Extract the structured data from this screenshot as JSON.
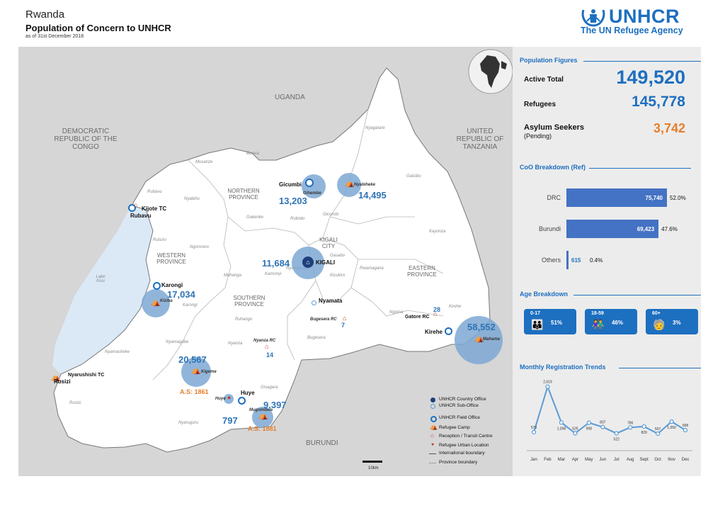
{
  "header": {
    "country": "Rwanda",
    "title": "Population of Concern to UNHCR",
    "date": "as of 31st December 2018"
  },
  "logo": {
    "name": "UNHCR",
    "tagline": "The UN Refugee Agency"
  },
  "population_figures": {
    "title": "Population Figures",
    "active_total_label": "Active Total",
    "active_total": "149,520",
    "refugees_label": "Refugees",
    "refugees": "145,778",
    "asylum_label": "Asylum Seekers",
    "asylum_sub": "(Pending)",
    "asylum": "3,742"
  },
  "coo": {
    "title": "CoO Breakdown (Ref)",
    "max": 75740,
    "rows": [
      {
        "label": "DRC",
        "value": 75740,
        "value_text": "75,740",
        "pct": "52.0%"
      },
      {
        "label": "Burundi",
        "value": 69423,
        "value_text": "69,423",
        "pct": "47.6%"
      },
      {
        "label": "Others",
        "value": 615,
        "value_text": "615",
        "pct": "0.4%"
      }
    ]
  },
  "age": {
    "title": "Age Breakdown",
    "groups": [
      {
        "range": "0-17",
        "pct": "51%"
      },
      {
        "range": "18-59",
        "pct": "46%"
      },
      {
        "range": "60+",
        "pct": "3%"
      }
    ]
  },
  "trends": {
    "title": "Monthly Registration Trends",
    "months": [
      "Jan",
      "Feb",
      "Mar",
      "Apr",
      "May",
      "Jun",
      "Jul",
      "Aug",
      "Sept",
      "Oct",
      "Nov",
      "Dec"
    ],
    "values": [
      573,
      2619,
      1008,
      525,
      998,
      807,
      522,
      786,
      829,
      507,
      1050,
      668
    ],
    "labels": [
      "573",
      "2,619",
      "1,008",
      "525",
      "998",
      "807",
      "522",
      "786",
      "829",
      "507",
      "1,050",
      "668"
    ]
  },
  "map": {
    "countries": {
      "uganda": "UGANDA",
      "drc": "DEMOCRATIC REPUBLIC OF THE CONGO",
      "tanzania": "UNITED REPUBLIC OF TANZANIA",
      "burundi": "BURUNDI"
    },
    "provinces": {
      "northern": "NORTHERN PROVINCE",
      "western": "WESTERN PROVINCE",
      "southern": "SOUTHERN PROVINCE",
      "eastern": "EASTERN PROVINCE",
      "kigali_city": "KIGALI CITY"
    },
    "districts": [
      "Burera",
      "Musanze",
      "Rubavu",
      "Nyabihu",
      "Gakenke",
      "Rulindo",
      "Gicumbi",
      "Nyagatare",
      "Gatsibo",
      "Kayonza",
      "Rutsiro",
      "Ngororero",
      "Muhanga",
      "Kamonyi",
      "Gasabo",
      "Kicukiro",
      "Rwamagana",
      "Nyarugenge",
      "Karongi",
      "Ruhango",
      "Ngoma",
      "Kirehe",
      "Bugesera",
      "Nyamagabe",
      "Nyanza",
      "Nyamasheke",
      "Gisagara",
      "Rusizi",
      "Nyaruguru",
      "Lake Kivu"
    ],
    "sites": {
      "gicumbi": "Gicumbi",
      "gihembe": "Gihembe",
      "gihembe_n": "13,203",
      "nyabiheke": "Nyabiheke",
      "nyabiheke_n": "14,495",
      "kijote": "Kijote TC",
      "rubavu": "Rubavu",
      "kigali": "KIGALI",
      "kigali_n": "11,684",
      "karongi": "Karongi",
      "kiziba": "Kiziba",
      "kiziba_n": "17,034",
      "nyamata": "Nyamata",
      "bugesera": "Bugesera RC",
      "bugesera_n": "7",
      "gatore": "Gatore RC",
      "gatore_n": "28",
      "kirehe": "Kirehe",
      "mahama": "Mahama",
      "mahama_n": "58,552",
      "nyanza": "Nyanza RC",
      "nyanza_n": "14",
      "kigeme": "Kigeme",
      "kigeme_n": "20,567",
      "kigeme_as": "A.S: 1861",
      "nyarushishi": "Nyarushishi TC",
      "rusizi": "Rusizi",
      "huye_site": "Huye",
      "huye": "Huye",
      "huye_n": "797",
      "mugombwa": "Mugombwa",
      "mugombwa_n": "9,397",
      "mugombwa_as": "A.S: 1881"
    },
    "legend": [
      "UNHCR Country Office",
      "UNHCR Sub-Office",
      "UNHCR Field Office",
      "Refugee Camp",
      "Reception / Transit Centre",
      "Refugee Urban Location",
      "International boundary",
      "Province boundary"
    ],
    "scale": "10km"
  },
  "colors": {
    "accent": "#1d6fc0",
    "orange": "#e57f2d",
    "bar": "#4472c4",
    "bubble": "#7ea8d4",
    "lake": "#dbe9f7"
  }
}
